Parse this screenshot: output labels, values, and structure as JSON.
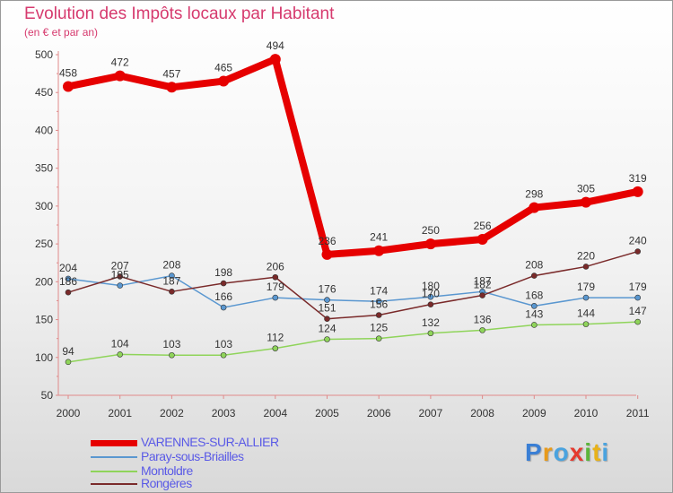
{
  "title": "Evolution des Impôts locaux par Habitant",
  "subtitle": "(en € et par an)",
  "logo": {
    "letters": [
      "P",
      "r",
      "o",
      "x",
      "i",
      "t",
      "i"
    ],
    "colors": [
      "#3a7fd5",
      "#e89a1a",
      "#4aa3df",
      "#e53a2f",
      "#5bb53a",
      "#e8b21a",
      "#4aa3df"
    ]
  },
  "chart_data": {
    "type": "line",
    "x": [
      "2000",
      "2001",
      "2002",
      "2003",
      "2004",
      "2005",
      "2006",
      "2007",
      "2008",
      "2009",
      "2010",
      "2011"
    ],
    "ylim": [
      50,
      500
    ],
    "yticks": [
      "50",
      "100",
      "150",
      "200",
      "250",
      "300",
      "350",
      "400",
      "450",
      "500"
    ],
    "grid": false,
    "legend_position": "bottom-left",
    "series": [
      {
        "name": "VARENNES-SUR-ALLIER",
        "color": "#e60000",
        "label_color": "#333333",
        "values": [
          458,
          472,
          457,
          465,
          494,
          236,
          241,
          250,
          256,
          298,
          305,
          319
        ],
        "labels": [
          "458",
          "472",
          "457",
          "465",
          "494",
          "236",
          "241",
          "250",
          "256",
          "298",
          "305",
          "319"
        ]
      },
      {
        "name": "Paray-sous-Briailles",
        "color": "#5a97d0",
        "label_color": "#333333",
        "values": [
          204,
          195,
          208,
          166,
          179,
          176,
          174,
          180,
          187,
          168,
          179,
          179
        ],
        "labels": [
          "204",
          "195",
          "208",
          "166",
          "179",
          "176",
          "174",
          "180",
          "187",
          "168",
          "179",
          "179"
        ]
      },
      {
        "name": "Montoldre",
        "color": "#8fd45a",
        "label_color": "#333333",
        "values": [
          94,
          104,
          103,
          103,
          112,
          124,
          125,
          132,
          136,
          143,
          144,
          147
        ],
        "labels": [
          "94",
          "104",
          "103",
          "103",
          "112",
          "124",
          "125",
          "132",
          "136",
          "143",
          "144",
          "147"
        ]
      },
      {
        "name": "Rongères",
        "color": "#7a2a2a",
        "label_color": "#333333",
        "values": [
          186,
          207,
          187,
          198,
          206,
          151,
          156,
          170,
          182,
          208,
          220,
          240
        ],
        "labels": [
          "186",
          "207",
          "187",
          "198",
          "206",
          "151",
          "156",
          "170",
          "182",
          "208",
          "220",
          "240"
        ]
      }
    ]
  }
}
